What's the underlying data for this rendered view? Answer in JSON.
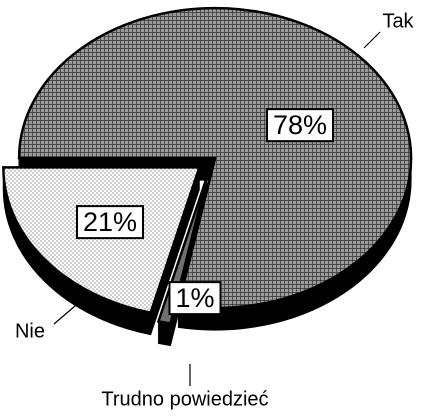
{
  "chart_data": {
    "type": "pie",
    "categories": [
      "Tak",
      "Trudno powiedzieć",
      "Nie"
    ],
    "values": [
      78,
      1,
      21
    ],
    "value_labels": [
      "78%",
      "1%",
      "21%"
    ],
    "colors": [
      "#9a9a9a",
      "#707070",
      "#e6e6e6"
    ]
  }
}
